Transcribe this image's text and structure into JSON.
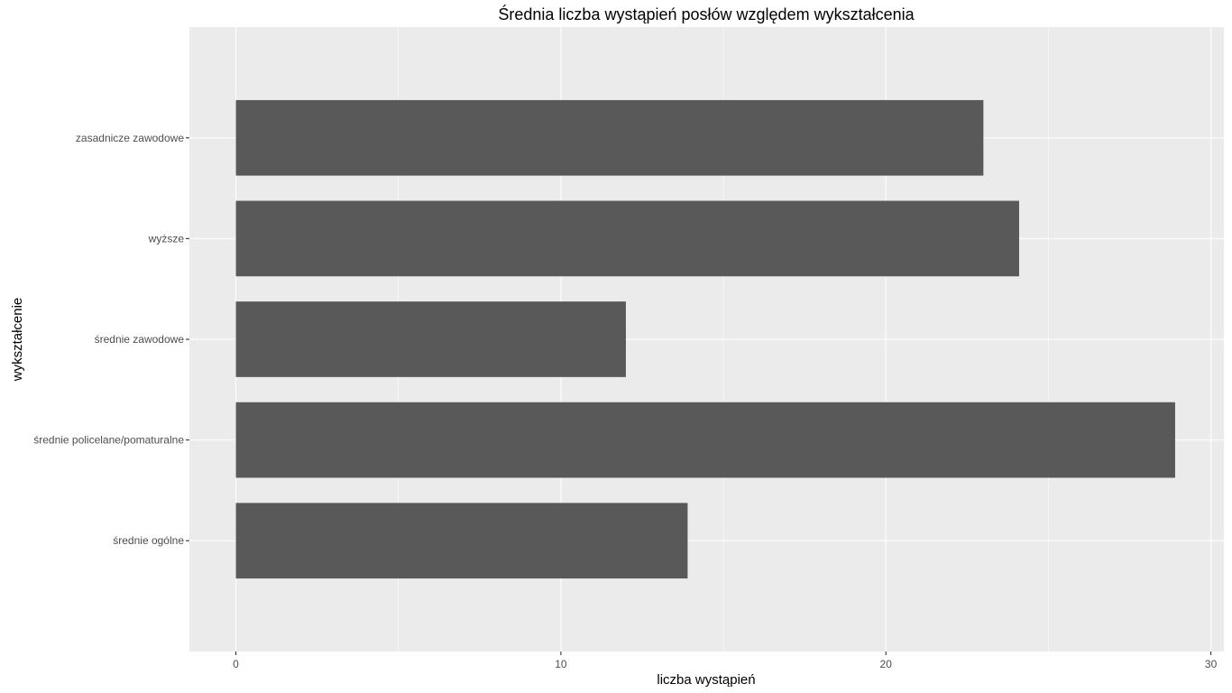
{
  "chart_data": {
    "type": "bar",
    "orientation": "horizontal",
    "title": "Średnia liczba wystąpień posłów względem wykształcenia",
    "xlabel": "liczba wystąpień",
    "ylabel": "wykształcenie",
    "categories": [
      "zasadnicze zawodowe",
      "wyższe",
      "średnie zawodowe",
      "średnie policelane/pomaturalne",
      "średnie ogólne"
    ],
    "values": [
      23.0,
      24.1,
      12.0,
      28.9,
      13.9
    ],
    "xlim": [
      -1.43,
      30.4
    ],
    "xticks": [
      0,
      10,
      20,
      30
    ],
    "xtick_labels": [
      "0",
      "10",
      "20",
      "30"
    ],
    "grid": true,
    "legend": "none",
    "colors": {
      "panel": "#ebebeb",
      "bar": "#595959",
      "grid": "#ffffff"
    }
  }
}
